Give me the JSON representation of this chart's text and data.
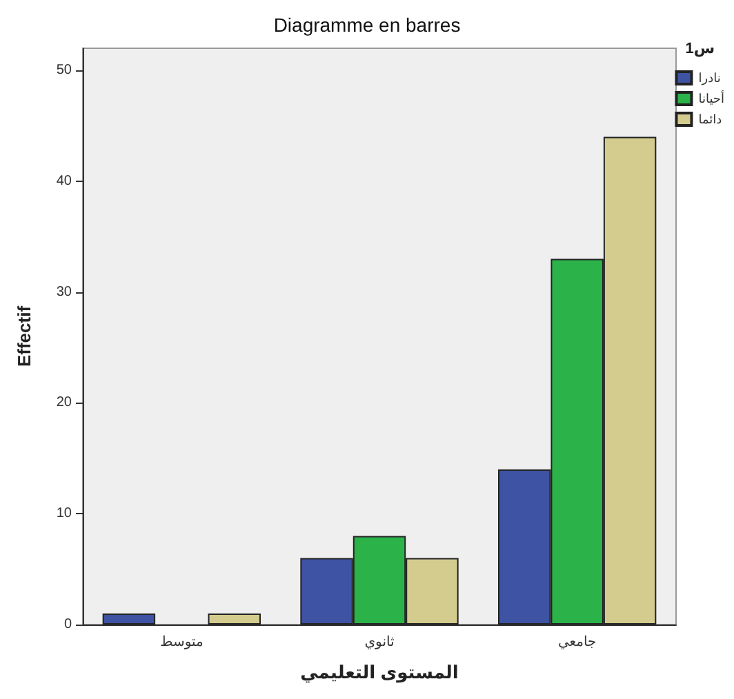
{
  "chart_data": {
    "type": "bar",
    "title": "Diagramme en barres",
    "xlabel": "المستوى التعليمي",
    "ylabel": "Effectif",
    "legend_title": "س1",
    "categories": [
      "متوسط",
      "ثانوي",
      "جامعي"
    ],
    "series": [
      {
        "name": "نادرا",
        "color": "#3e53a3",
        "values": [
          1,
          6,
          14
        ]
      },
      {
        "name": "أحيانا",
        "color": "#2bb34a",
        "values": [
          0,
          8,
          33
        ]
      },
      {
        "name": "دائما",
        "color": "#d4cc8e",
        "values": [
          1,
          6,
          44
        ]
      }
    ],
    "ylim": [
      0,
      52
    ],
    "yticks": [
      0,
      10,
      20,
      30,
      40,
      50
    ],
    "grid": false,
    "legend": "top right"
  }
}
